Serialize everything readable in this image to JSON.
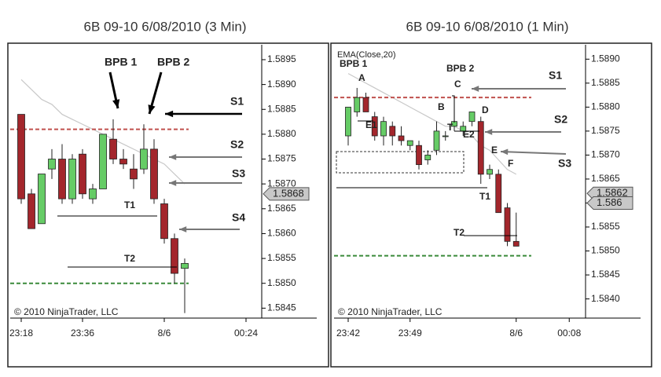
{
  "chart_data": [
    {
      "type": "candlestick",
      "title": "6B 09-10  6/08/2010 (3 Min)",
      "copyright": "© 2010 NinjaTrader, LLC",
      "categories": [
        "23:18",
        null,
        null,
        null,
        null,
        null,
        "23:36",
        null,
        null,
        null,
        null,
        null,
        null,
        null,
        "8/6",
        null,
        null,
        null,
        null,
        null,
        null,
        null,
        "00:24"
      ],
      "open": [
        1.5884,
        1.5868,
        1.5862,
        1.5873,
        1.5875,
        1.5867,
        1.5876,
        1.5867,
        1.5869,
        1.5879,
        1.5875,
        1.5873,
        1.5873,
        1.5877,
        1.5866,
        1.5859,
        1.5853,
        null,
        null,
        null,
        null,
        null,
        null
      ],
      "high": [
        1.5884,
        1.5869,
        1.5872,
        1.5877,
        1.5878,
        1.5876,
        1.5877,
        1.587,
        1.588,
        1.5883,
        1.5877,
        1.5876,
        1.5882,
        1.5879,
        1.5867,
        1.586,
        1.5855,
        null,
        null,
        null,
        null,
        null,
        null
      ],
      "low": [
        1.5866,
        1.5861,
        1.5862,
        1.5871,
        1.5866,
        1.5866,
        1.5867,
        1.5866,
        1.5869,
        1.5874,
        1.5873,
        1.5869,
        1.5872,
        1.5866,
        1.5858,
        1.585,
        1.5844,
        null,
        null,
        null,
        null,
        null,
        null
      ],
      "close": [
        1.5867,
        1.5861,
        1.5872,
        1.5875,
        1.5867,
        1.5875,
        1.5868,
        1.5869,
        1.588,
        1.5875,
        1.5874,
        1.5871,
        1.5877,
        1.5867,
        1.5859,
        1.5852,
        1.5854,
        null,
        null,
        null,
        null,
        null,
        null
      ],
      "overlay_values": [
        1.5891,
        1.5889,
        1.5887,
        1.5886,
        1.5884,
        1.5883,
        1.5882,
        1.5881,
        1.588,
        1.5879,
        1.5878,
        1.5877,
        1.5876,
        1.5875,
        1.5874,
        1.5872,
        1.587,
        null,
        null,
        null,
        null,
        null,
        null
      ],
      "up_color": "#66cc66",
      "down_color": "#a3262c",
      "overlay_color": "#c8c8c8",
      "ylim": [
        1.5843,
        1.5898
      ],
      "yticks": [
        1.5895,
        {
          "value": 1.589,
          "label": "1.5890"
        },
        1.5885,
        {
          "value": 1.588,
          "label": "1.5880"
        },
        1.5875,
        {
          "value": 1.587,
          "label": "1.5870"
        },
        1.5865,
        {
          "value": 1.586,
          "label": "1.5860"
        },
        1.5855,
        {
          "value": 1.585,
          "label": "1.5850"
        },
        1.5845
      ],
      "price_markers": [
        1.5868
      ],
      "hlines": [
        {
          "value": 1.5881,
          "color": "#c0504d"
        },
        {
          "value": 1.585,
          "color": "#3a8a3a"
        }
      ],
      "annotations": [
        "BPB 1",
        "BPB 2",
        "S1",
        "S2",
        "S3",
        "S4",
        "T1",
        "T2"
      ]
    },
    {
      "type": "candlestick",
      "title": "6B 09-10  6/08/2010 (1 Min)",
      "copyright": "© 2010 NinjaTrader, LLC",
      "overlay_name": "EMA(Close,20)",
      "categories": [
        "23:42",
        null,
        null,
        null,
        null,
        null,
        null,
        "23:49",
        null,
        null,
        null,
        null,
        null,
        null,
        null,
        null,
        null,
        null,
        null,
        "8/6",
        null,
        null,
        null,
        null,
        null,
        "00:08"
      ],
      "open": [
        1.5874,
        1.5879,
        1.5882,
        1.5878,
        1.5874,
        1.5876,
        1.5874,
        1.5872,
        1.5872,
        1.5869,
        1.5871,
        1.5874,
        1.5876,
        1.5875,
        1.5877,
        1.5877,
        1.5866,
        1.5866,
        1.5859,
        1.5852,
        null,
        null,
        null,
        null,
        null,
        null
      ],
      "high": [
        1.588,
        1.5884,
        1.5883,
        1.5879,
        1.5878,
        1.5877,
        1.5876,
        1.5873,
        1.5873,
        1.5871,
        1.5877,
        1.5875,
        1.5882,
        1.5877,
        1.5879,
        1.5878,
        1.5868,
        1.5867,
        1.586,
        1.5858,
        null,
        null,
        null,
        null,
        null,
        null
      ],
      "low": [
        1.5872,
        1.5878,
        1.5879,
        1.5873,
        1.5872,
        1.5872,
        1.5872,
        1.5871,
        1.5867,
        1.5868,
        1.587,
        1.5873,
        1.5875,
        1.5874,
        1.5876,
        1.5864,
        1.5865,
        1.5858,
        1.5851,
        1.5851,
        null,
        null,
        null,
        null,
        null,
        null
      ],
      "close": [
        1.588,
        1.5882,
        1.5879,
        1.5874,
        1.5877,
        1.5874,
        1.5873,
        1.5873,
        1.5868,
        1.587,
        1.5875,
        1.5874,
        1.5877,
        1.5876,
        1.5879,
        1.5866,
        1.5867,
        1.5858,
        1.5852,
        1.5851,
        null,
        null,
        null,
        null,
        null,
        null
      ],
      "overlay_values": [
        1.5887,
        1.5886,
        1.5885,
        1.5884,
        1.5883,
        1.5882,
        1.5881,
        1.588,
        1.5879,
        1.5878,
        1.5877,
        1.5876,
        1.5876,
        1.5875,
        1.5874,
        1.5872,
        1.5871,
        1.5869,
        1.5867,
        1.5866,
        null,
        null,
        null,
        null,
        null,
        null
      ],
      "up_color": "#66cc66",
      "down_color": "#a3262c",
      "overlay_color": "#c8c8c8",
      "ylim": [
        1.5836,
        1.5893
      ],
      "yticks": [
        {
          "value": 1.589,
          "label": "1.5890"
        },
        1.5885,
        {
          "value": 1.588,
          "label": "1.5880"
        },
        1.5875,
        {
          "value": 1.587,
          "label": "1.5870"
        },
        1.5865,
        {
          "value": 1.586,
          "label": "1.5860"
        },
        1.5855,
        {
          "value": 1.585,
          "label": "1.5850"
        },
        1.5845,
        {
          "value": 1.584,
          "label": "1.5840"
        }
      ],
      "price_markers": [
        1.5862,
        1.586
      ],
      "hlines": [
        {
          "value": 1.5882,
          "color": "#c0504d"
        },
        {
          "value": 1.5849,
          "color": "#3a8a3a"
        }
      ],
      "annotations": [
        "BPB 1",
        "BPB 2",
        "A",
        "B",
        "C",
        "D",
        "E",
        "F",
        "E1",
        "E2",
        "T",
        "S1",
        "S2",
        "S3",
        "T1",
        "T2"
      ]
    }
  ]
}
